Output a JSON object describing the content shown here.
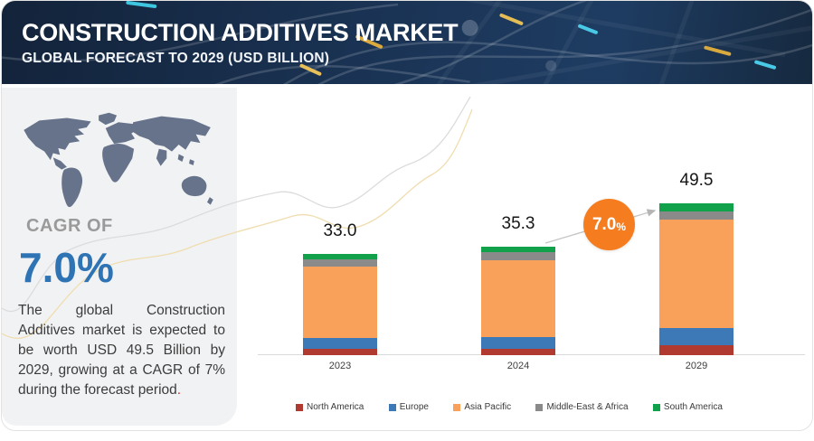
{
  "header": {
    "title": "CONSTRUCTION ADDITIVES MARKET",
    "subtitle": "GLOBAL FORECAST TO 2029 (USD BILLION)"
  },
  "sidebar": {
    "cagr_label": "CAGR OF",
    "cagr_value": "7.0%",
    "description": "The global Construction Additives market is expected to be worth USD 49.5 Billion by 2029, growing at a CAGR of 7% during the forecast period",
    "description_period": "."
  },
  "callout": {
    "value": "7.0",
    "percent_sign": "%"
  },
  "chart_data": {
    "type": "bar",
    "stacked": true,
    "unit": "USD Billion",
    "title": "Construction Additives Market, Global Forecast to 2029 (USD Billion)",
    "categories": [
      "2023",
      "2024",
      "2029"
    ],
    "totals": [
      33.0,
      35.3,
      49.5
    ],
    "totals_display": [
      "33.0",
      "35.3",
      "49.5"
    ],
    "series": [
      {
        "name": "North America",
        "color": "#b13a30",
        "values": [
          2.1,
          2.1,
          3.3
        ]
      },
      {
        "name": "Europe",
        "color": "#3d79b7",
        "values": [
          3.5,
          3.8,
          5.4
        ]
      },
      {
        "name": "Asia Pacific",
        "color": "#f9a15a",
        "values": [
          23.2,
          25.0,
          35.4
        ]
      },
      {
        "name": "Middle-East & Africa",
        "color": "#8a8a8a",
        "values": [
          2.4,
          2.6,
          2.7
        ]
      },
      {
        "name": "South America",
        "color": "#12a14b",
        "values": [
          1.8,
          1.8,
          2.7
        ]
      }
    ],
    "annotation": {
      "cagr": "7.0%"
    },
    "legend_position": "bottom",
    "grid": false,
    "ylim": [
      0,
      55
    ]
  },
  "colors": {
    "header_bg": "#16293f",
    "panel_bg": "#f1f2f4",
    "cagr_blue": "#2e74b5",
    "callout_orange": "#f57d1f",
    "map_fill": "#66738a",
    "axis_line": "#dadada",
    "curve_gray": "#dcdcdc",
    "curve_gold": "#f0ddb0"
  }
}
